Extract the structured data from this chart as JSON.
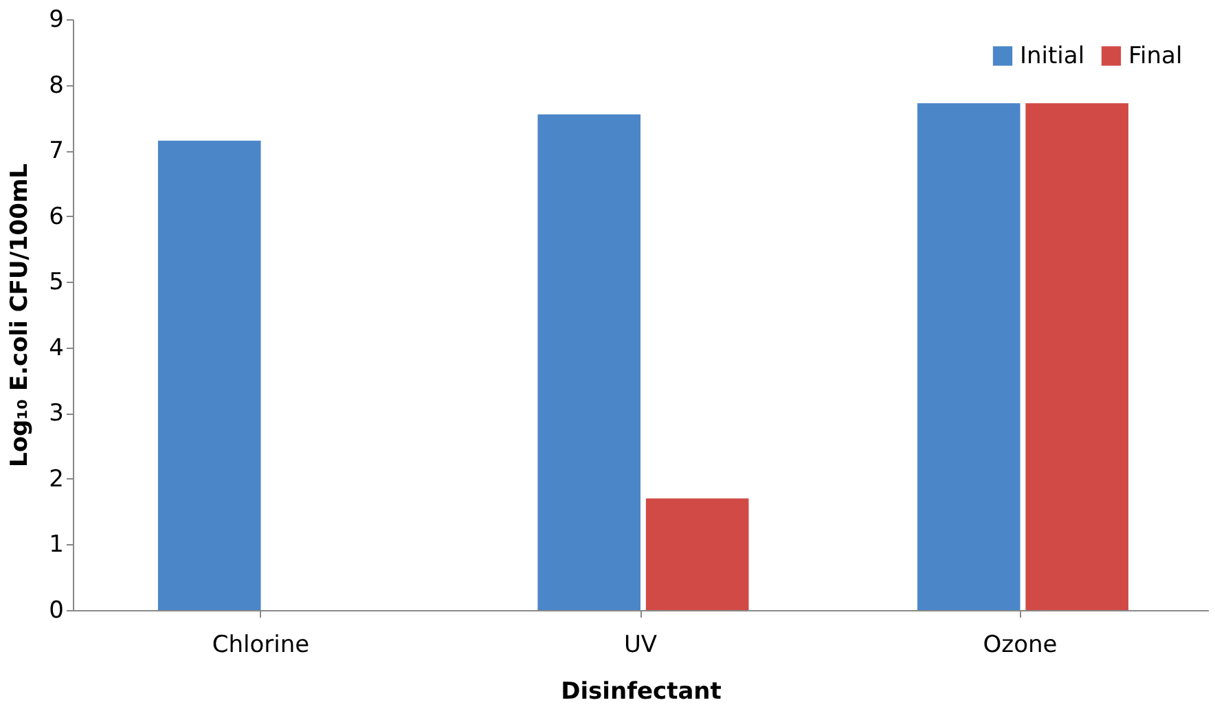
{
  "chart_data": {
    "type": "bar",
    "xlabel": "Disinfectant",
    "ylabel": "Log₁₀ E.coli CFU/100mL",
    "categories": [
      "Chlorine",
      "UV",
      "Ozone"
    ],
    "series": [
      {
        "name": "Initial",
        "color": "#4a86c8",
        "values": [
          7.15,
          7.55,
          7.72
        ]
      },
      {
        "name": "Final",
        "color": "#d24a45",
        "values": [
          0,
          1.7,
          7.72
        ]
      }
    ],
    "ylim": [
      0,
      9
    ],
    "yticks": [
      0,
      1,
      2,
      3,
      4,
      5,
      6,
      7,
      8,
      9
    ],
    "grid": false,
    "legend": "top right"
  }
}
